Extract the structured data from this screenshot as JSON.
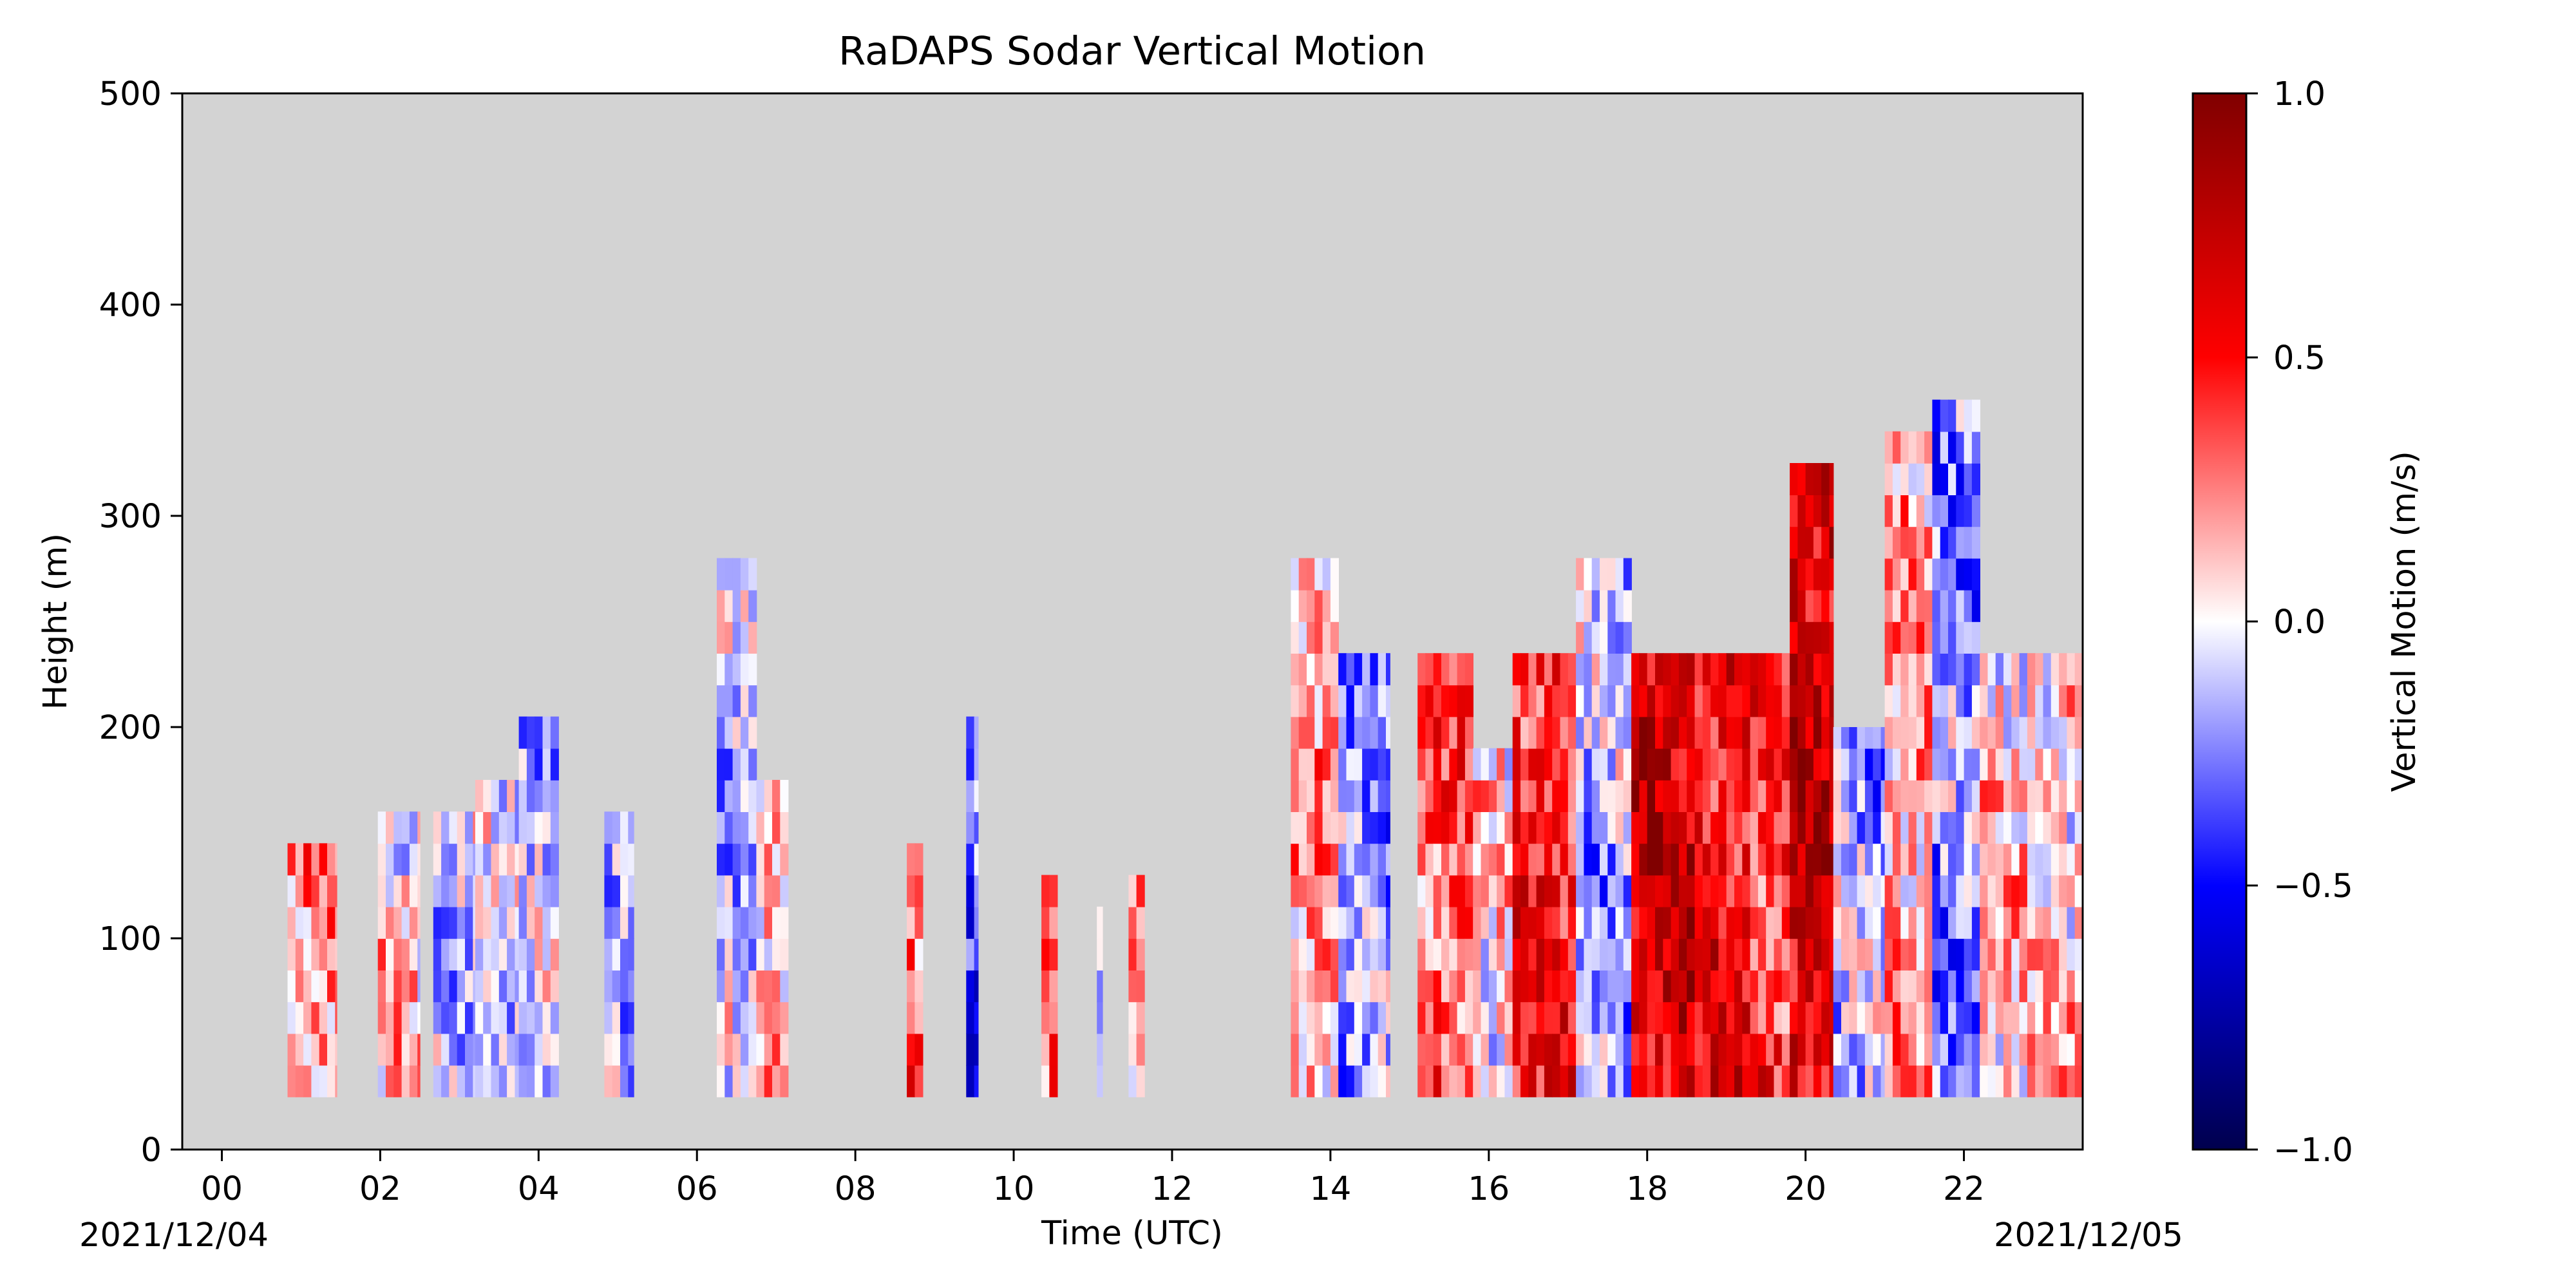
{
  "chart_data": {
    "type": "heatmap",
    "title": "RaDAPS Sodar Vertical Motion",
    "xlabel": "Time (UTC)",
    "ylabel": "Height (m)",
    "xlim_hours": [
      -0.5,
      23.5
    ],
    "ylim": [
      0,
      500
    ],
    "x_ticks": [
      "00",
      "02",
      "04",
      "06",
      "08",
      "10",
      "12",
      "14",
      "16",
      "18",
      "20",
      "22"
    ],
    "x_tick_hours": [
      0,
      2,
      4,
      6,
      8,
      10,
      12,
      14,
      16,
      18,
      20,
      22
    ],
    "y_ticks": [
      0,
      100,
      200,
      300,
      400,
      500
    ],
    "date_start": "2021/12/04",
    "date_end": "2021/12/05",
    "background_color": "#d3d3d3",
    "grid": false,
    "colorbar": {
      "label": "Vertical Motion (m/s)",
      "vmin": -1.0,
      "vmax": 1.0,
      "ticks": [
        "1.0",
        "0.5",
        "0.0",
        "−0.5",
        "−1.0"
      ],
      "tick_values": [
        1.0,
        0.5,
        0.0,
        -0.5,
        -1.0
      ],
      "colormap": "seismic",
      "colors": [
        "#00004d",
        "#0000ff",
        "#ffffff",
        "#ff0000",
        "#800000"
      ]
    },
    "data_columns": [
      {
        "start": 0.83,
        "end": 1.45,
        "top": 145,
        "mean": 0.25
      },
      {
        "start": 1.97,
        "end": 2.5,
        "top": 160,
        "mean": 0.08
      },
      {
        "start": 2.67,
        "end": 3.2,
        "top": 160,
        "mean": -0.05
      },
      {
        "start": 3.2,
        "end": 3.75,
        "top": 175,
        "mean": -0.1
      },
      {
        "start": 3.75,
        "end": 4.25,
        "top": 205,
        "mean": -0.12
      },
      {
        "start": 4.83,
        "end": 5.2,
        "top": 160,
        "mean": -0.1
      },
      {
        "start": 6.25,
        "end": 6.75,
        "top": 280,
        "mean": -0.1
      },
      {
        "start": 6.75,
        "end": 7.15,
        "top": 175,
        "mean": 0.2
      },
      {
        "start": 8.65,
        "end": 8.85,
        "top": 145,
        "mean": 0.3
      },
      {
        "start": 9.4,
        "end": 9.55,
        "top": 205,
        "mean": -0.35
      },
      {
        "start": 10.35,
        "end": 10.55,
        "top": 130,
        "mean": 0.25
      },
      {
        "start": 11.05,
        "end": 11.12,
        "top": 115,
        "mean": -0.1
      },
      {
        "start": 11.45,
        "end": 11.65,
        "top": 130,
        "mean": 0.25
      },
      {
        "start": 13.5,
        "end": 14.1,
        "top": 280,
        "mean": 0.2
      },
      {
        "start": 14.1,
        "end": 14.75,
        "top": 235,
        "mean": -0.2
      },
      {
        "start": 15.1,
        "end": 15.8,
        "top": 235,
        "mean": 0.35
      },
      {
        "start": 15.8,
        "end": 16.3,
        "top": 190,
        "mean": 0.05
      },
      {
        "start": 16.3,
        "end": 17.1,
        "top": 235,
        "mean": 0.5
      },
      {
        "start": 17.1,
        "end": 17.8,
        "top": 280,
        "mean": -0.15
      },
      {
        "start": 17.8,
        "end": 18.6,
        "top": 235,
        "mean": 0.7
      },
      {
        "start": 18.6,
        "end": 19.3,
        "top": 235,
        "mean": 0.55
      },
      {
        "start": 19.3,
        "end": 19.8,
        "top": 235,
        "mean": 0.45
      },
      {
        "start": 19.8,
        "end": 20.35,
        "top": 325,
        "mean": 0.7
      },
      {
        "start": 20.35,
        "end": 21.0,
        "top": 200,
        "mean": -0.15
      },
      {
        "start": 21.0,
        "end": 21.6,
        "top": 340,
        "mean": 0.2
      },
      {
        "start": 21.6,
        "end": 22.2,
        "top": 355,
        "mean": -0.2
      },
      {
        "start": 22.2,
        "end": 23.5,
        "top": 235,
        "mean": 0.1
      }
    ]
  }
}
